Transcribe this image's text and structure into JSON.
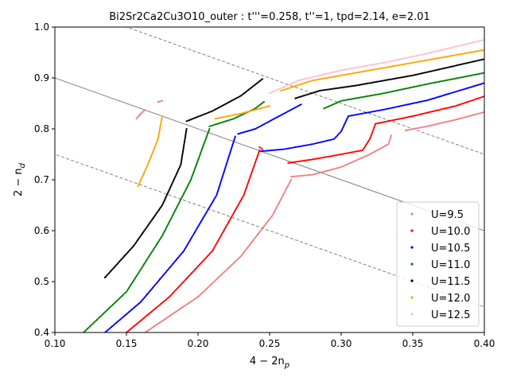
{
  "chart_data": {
    "type": "scatter",
    "title": "Bi2Sr2Ca2Cu3O10_outer : t'''=0.258, t''=1, tpd=2.14, e=2.01",
    "xlabel": "4 − 2n",
    "xlabel_sub": "p",
    "ylabel": "2 − n",
    "ylabel_sub": "d",
    "xlim": [
      0.1,
      0.4
    ],
    "ylim": [
      0.4,
      1.0
    ],
    "xticks": [
      "0.10",
      "0.15",
      "0.20",
      "0.25",
      "0.30",
      "0.35",
      "0.40"
    ],
    "yticks": [
      "0.4",
      "0.5",
      "0.6",
      "0.7",
      "0.8",
      "0.9",
      "1.0"
    ],
    "grid": false,
    "legend_position": "lower right",
    "reference_lines": [
      {
        "style": "solid",
        "color": "#808080",
        "points": [
          [
            0.1,
            0.9
          ],
          [
            0.4,
            0.6
          ]
        ]
      },
      {
        "style": "dashed",
        "color": "#808080",
        "points": [
          [
            0.1,
            0.75
          ],
          [
            0.4,
            0.45
          ]
        ]
      },
      {
        "style": "dashed",
        "color": "#808080",
        "points": [
          [
            0.15,
            1.0
          ],
          [
            0.4,
            0.75
          ]
        ]
      }
    ],
    "series": [
      {
        "name": "U=9.5",
        "color": "#f08080",
        "segments": [
          [
            [
              0.163,
              0.4
            ],
            [
              0.2,
              0.47
            ],
            [
              0.23,
              0.55
            ],
            [
              0.252,
              0.63
            ],
            [
              0.265,
              0.7
            ]
          ],
          [
            [
              0.265,
              0.706
            ],
            [
              0.28,
              0.71
            ],
            [
              0.3,
              0.725
            ],
            [
              0.32,
              0.75
            ],
            [
              0.333,
              0.77
            ],
            [
              0.335,
              0.787
            ]
          ],
          [
            [
              0.345,
              0.797
            ],
            [
              0.36,
              0.805
            ],
            [
              0.38,
              0.818
            ],
            [
              0.4,
              0.833
            ]
          ],
          [
            [
              0.157,
              0.82
            ],
            [
              0.16,
              0.83
            ],
            [
              0.163,
              0.837
            ]
          ],
          [
            [
              0.172,
              0.853
            ],
            [
              0.175,
              0.855
            ]
          ]
        ]
      },
      {
        "name": "U=10.0",
        "color": "#ff0000",
        "segments": [
          [
            [
              0.15,
              0.4
            ],
            [
              0.18,
              0.47
            ],
            [
              0.21,
              0.56
            ],
            [
              0.232,
              0.67
            ],
            [
              0.243,
              0.758
            ]
          ],
          [
            [
              0.245,
              0.76
            ],
            [
              0.243,
              0.764
            ]
          ],
          [
            [
              0.263,
              0.733
            ],
            [
              0.28,
              0.74
            ],
            [
              0.3,
              0.75
            ],
            [
              0.315,
              0.758
            ],
            [
              0.32,
              0.78
            ],
            [
              0.324,
              0.81
            ]
          ],
          [
            [
              0.324,
              0.81
            ],
            [
              0.35,
              0.825
            ],
            [
              0.38,
              0.845
            ],
            [
              0.4,
              0.864
            ]
          ]
        ]
      },
      {
        "name": "U=10.5",
        "color": "#0000ff",
        "segments": [
          [
            [
              0.135,
              0.4
            ],
            [
              0.16,
              0.46
            ],
            [
              0.19,
              0.56
            ],
            [
              0.213,
              0.67
            ],
            [
              0.226,
              0.785
            ]
          ],
          [
            [
              0.244,
              0.756
            ],
            [
              0.26,
              0.76
            ],
            [
              0.28,
              0.77
            ],
            [
              0.295,
              0.78
            ],
            [
              0.3,
              0.795
            ],
            [
              0.305,
              0.825
            ]
          ],
          [
            [
              0.305,
              0.825
            ],
            [
              0.33,
              0.838
            ],
            [
              0.36,
              0.856
            ],
            [
              0.4,
              0.89
            ]
          ],
          [
            [
              0.228,
              0.79
            ],
            [
              0.24,
              0.8
            ],
            [
              0.26,
              0.83
            ],
            [
              0.272,
              0.848
            ]
          ]
        ]
      },
      {
        "name": "U=11.0",
        "color": "#008000",
        "segments": [
          [
            [
              0.12,
              0.4
            ],
            [
              0.15,
              0.48
            ],
            [
              0.175,
              0.59
            ],
            [
              0.195,
              0.7
            ],
            [
              0.208,
              0.8
            ]
          ],
          [
            [
              0.208,
              0.805
            ],
            [
              0.225,
              0.82
            ],
            [
              0.24,
              0.84
            ],
            [
              0.246,
              0.853
            ]
          ],
          [
            [
              0.288,
              0.84
            ],
            [
              0.3,
              0.855
            ],
            [
              0.33,
              0.87
            ],
            [
              0.36,
              0.888
            ],
            [
              0.4,
              0.91
            ]
          ]
        ]
      },
      {
        "name": "U=11.5",
        "color": "#000000",
        "segments": [
          [
            [
              0.135,
              0.508
            ],
            [
              0.155,
              0.57
            ],
            [
              0.175,
              0.65
            ],
            [
              0.188,
              0.73
            ],
            [
              0.192,
              0.8
            ]
          ],
          [
            [
              0.192,
              0.815
            ],
            [
              0.21,
              0.835
            ],
            [
              0.23,
              0.865
            ],
            [
              0.245,
              0.898
            ]
          ],
          [
            [
              0.268,
              0.86
            ],
            [
              0.285,
              0.875
            ],
            [
              0.31,
              0.885
            ],
            [
              0.35,
              0.905
            ],
            [
              0.4,
              0.937
            ]
          ]
        ]
      },
      {
        "name": "U=12.0",
        "color": "#ffa500",
        "segments": [
          [
            [
              0.158,
              0.687
            ],
            [
              0.165,
              0.73
            ],
            [
              0.172,
              0.78
            ],
            [
              0.175,
              0.825
            ]
          ],
          [
            [
              0.212,
              0.82
            ],
            [
              0.23,
              0.83
            ],
            [
              0.25,
              0.845
            ]
          ],
          [
            [
              0.258,
              0.875
            ],
            [
              0.28,
              0.895
            ],
            [
              0.32,
              0.915
            ],
            [
              0.36,
              0.935
            ],
            [
              0.4,
              0.955
            ]
          ]
        ]
      },
      {
        "name": "U=12.5",
        "color": "#ffc0cb",
        "segments": [
          [
            [
              0.25,
              0.87
            ],
            [
              0.27,
              0.895
            ],
            [
              0.3,
              0.915
            ],
            [
              0.33,
              0.93
            ],
            [
              0.36,
              0.948
            ],
            [
              0.4,
              0.975
            ]
          ]
        ]
      }
    ]
  }
}
